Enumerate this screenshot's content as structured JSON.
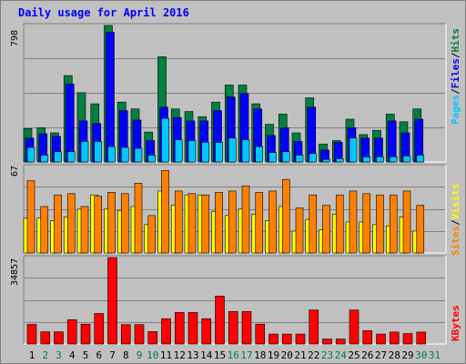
{
  "chart_data": {
    "type": "bar",
    "title": "Daily usage for April 2016",
    "categories": [
      "1",
      "2",
      "3",
      "4",
      "5",
      "6",
      "7",
      "8",
      "9",
      "10",
      "11",
      "12",
      "13",
      "14",
      "15",
      "16",
      "17",
      "18",
      "19",
      "20",
      "21",
      "22",
      "23",
      "24",
      "25",
      "26",
      "27",
      "28",
      "29",
      "30",
      "31"
    ],
    "weekend_days": [
      "2",
      "3",
      "9",
      "10",
      "16",
      "17",
      "23",
      "24",
      "30",
      "31"
    ],
    "colors": {
      "pages": "#00c8ff",
      "files": "#0000ff",
      "hits": "#008040",
      "visits": "#ffff00",
      "sites": "#ff8000",
      "kbytes": "#ff0000",
      "weekday_label": "#000000",
      "weekend_label": "#008040",
      "title": "#0000ff",
      "background": "#c0c0c0"
    },
    "panels": [
      {
        "id": "hits",
        "max_label": "798",
        "ylim": [
          0,
          798
        ],
        "legend": [
          {
            "text": "Pages",
            "color": "#00c8ff"
          },
          {
            "text": "/",
            "color": "#000000"
          },
          {
            "text": "Files",
            "color": "#0000ff"
          },
          {
            "text": "/",
            "color": "#000000"
          },
          {
            "text": "Hits",
            "color": "#008040"
          }
        ],
        "series": [
          {
            "key": "hits",
            "values": [
              195,
              200,
              170,
              505,
              405,
              340,
              798,
              350,
              310,
              175,
              615,
              310,
              295,
              265,
              350,
              450,
              450,
              340,
              220,
              280,
              170,
              375,
              105,
              125,
              250,
              160,
              185,
              280,
              235,
              310,
              0
            ]
          },
          {
            "key": "files",
            "values": [
              140,
              165,
              150,
              455,
              240,
              225,
              758,
              300,
              245,
              125,
              320,
              260,
              240,
              240,
              300,
              380,
              400,
              310,
              155,
              200,
              120,
              320,
              70,
              115,
              200,
              140,
              140,
              240,
              170,
              250,
              0
            ]
          },
          {
            "key": "pages",
            "values": [
              85,
              40,
              60,
              60,
              120,
              120,
              90,
              85,
              80,
              40,
              255,
              130,
              125,
              115,
              115,
              140,
              130,
              90,
              55,
              60,
              40,
              50,
              15,
              20,
              140,
              30,
              30,
              30,
              35,
              40,
              0
            ]
          }
        ]
      },
      {
        "id": "visits",
        "max_label": "67",
        "ylim": [
          0,
          67
        ],
        "legend": [
          {
            "text": "Sites",
            "color": "#ff8000"
          },
          {
            "text": "/",
            "color": "#000000"
          },
          {
            "text": "Visits",
            "color": "#ffff00"
          }
        ],
        "series": [
          {
            "key": "sites",
            "values": [
              56,
              36,
              45,
              46,
              36,
              44,
              47,
              46,
              54,
              29,
              64,
              48,
              46,
              45,
              47,
              48,
              52,
              47,
              48,
              57,
              35,
              45,
              37,
              45,
              48,
              46,
              45,
              45,
              48,
              37,
              0
            ]
          },
          {
            "key": "visits",
            "values": [
              27,
              27,
              25,
              28,
              34,
              45,
              34,
              33,
              36,
              22,
              48,
              37,
              45,
              45,
              32,
              29,
              34,
              30,
              25,
              36,
              17,
              26,
              18,
              30,
              24,
              24,
              22,
              21,
              28,
              17,
              0
            ]
          }
        ]
      },
      {
        "id": "kbytes",
        "max_label": "34857",
        "ylim": [
          0,
          34857
        ],
        "legend": [
          {
            "text": "KBytes",
            "color": "#ff0000"
          }
        ],
        "series": [
          {
            "key": "kbytes",
            "values": [
              7900,
              4900,
              4900,
              9800,
              8000,
              12300,
              34857,
              7800,
              7800,
              5000,
              10200,
              12700,
              12700,
              10200,
              19300,
              13100,
              13100,
              8000,
              4000,
              4000,
              4000,
              13700,
              2000,
              2000,
              13700,
              5400,
              4000,
              4800,
              4200,
              4800,
              0
            ]
          }
        ]
      }
    ]
  }
}
